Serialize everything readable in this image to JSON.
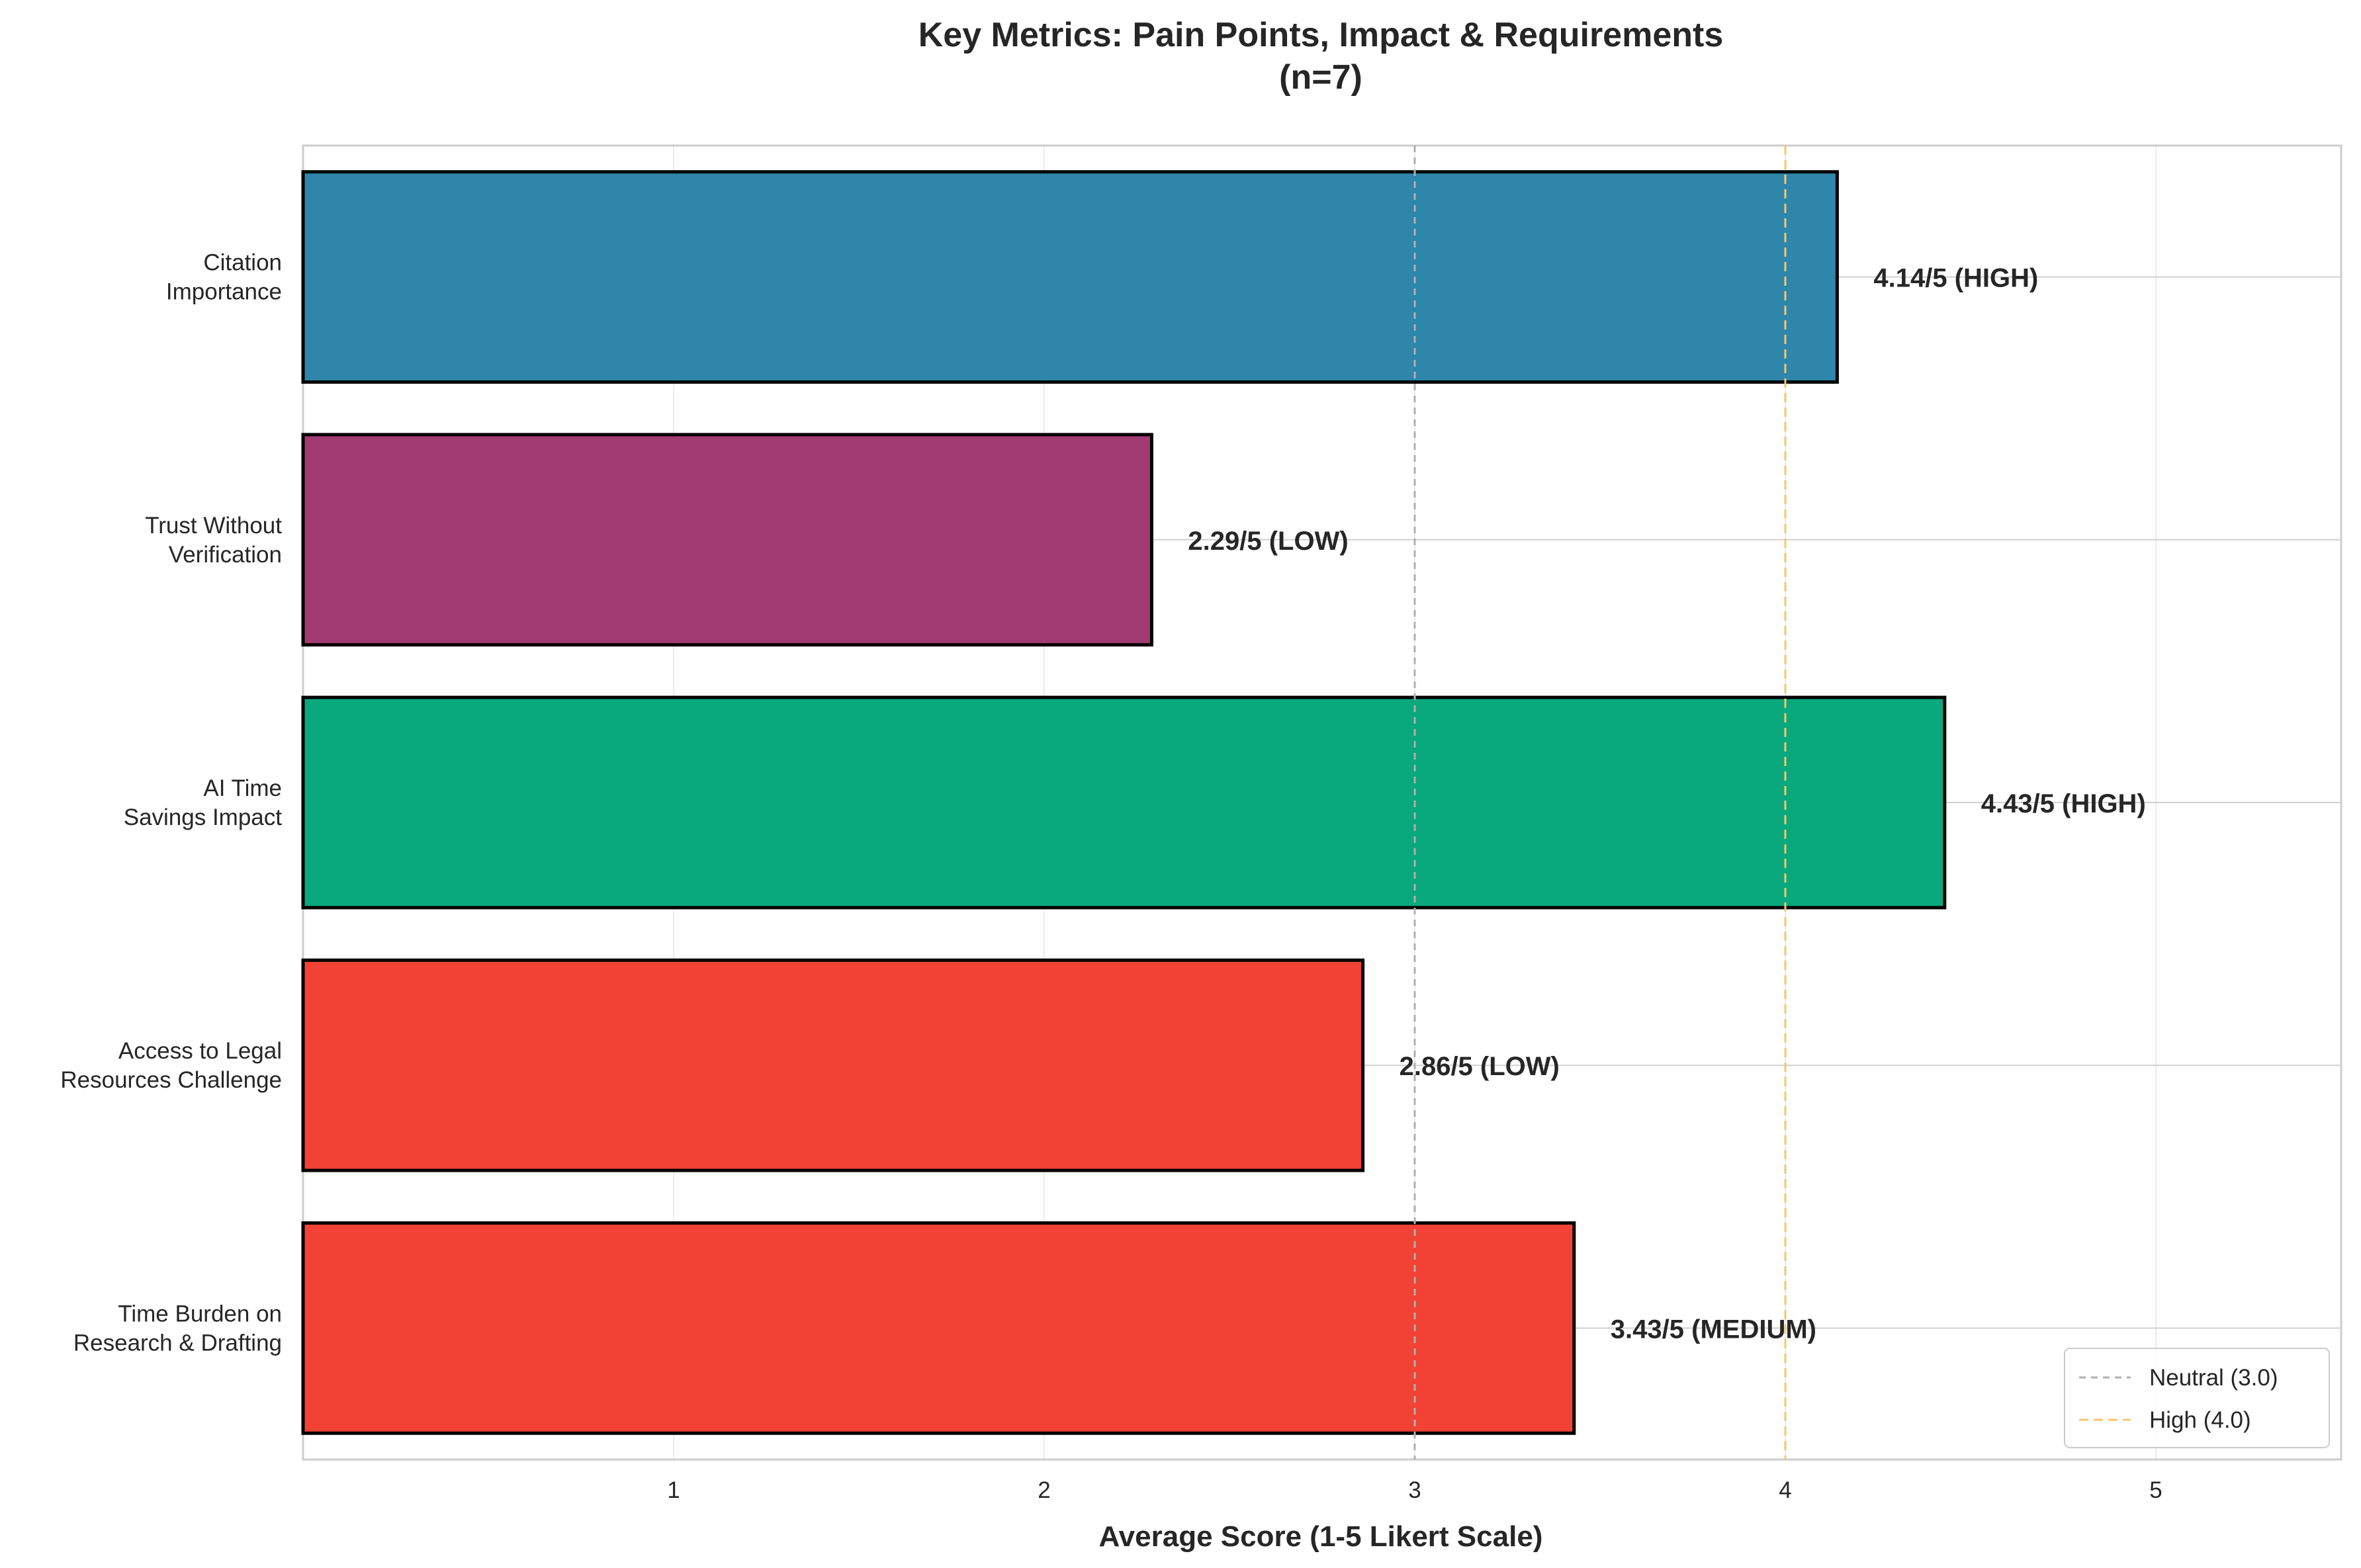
{
  "chart_data": {
    "type": "bar",
    "orientation": "horizontal",
    "title": "Key Metrics: Pain Points, Impact & Requirements",
    "subtitle": "(n=7)",
    "xlabel": "Average Score (1-5 Likert Scale)",
    "ylabel": "",
    "xlim": [
      0,
      5.5
    ],
    "xticks": [
      1,
      2,
      3,
      4,
      5
    ],
    "grid": true,
    "legend_position": "bottom-right",
    "categories": [
      [
        "Citation",
        "Importance"
      ],
      [
        "Trust Without",
        "Verification"
      ],
      [
        "AI Time",
        "Savings Impact"
      ],
      [
        "Access to Legal",
        "Resources Challenge"
      ],
      [
        "Time Burden on",
        "Research & Drafting"
      ]
    ],
    "values": [
      4.14,
      2.29,
      4.43,
      2.86,
      3.43
    ],
    "value_labels": [
      "4.14/5 (HIGH)",
      "2.29/5 (LOW)",
      "4.43/5 (HIGH)",
      "2.86/5 (LOW)",
      "3.43/5 (MEDIUM)"
    ],
    "bar_colors": [
      "#2e86ab",
      "#a23b72",
      "#0aa87d",
      "#f24236",
      "#f24236"
    ],
    "reference_lines": [
      {
        "value": 3.0,
        "label": "Neutral (3.0)",
        "color": "#b0b0b0"
      },
      {
        "value": 4.0,
        "label": "High (4.0)",
        "color": "#f7c66b"
      }
    ]
  }
}
